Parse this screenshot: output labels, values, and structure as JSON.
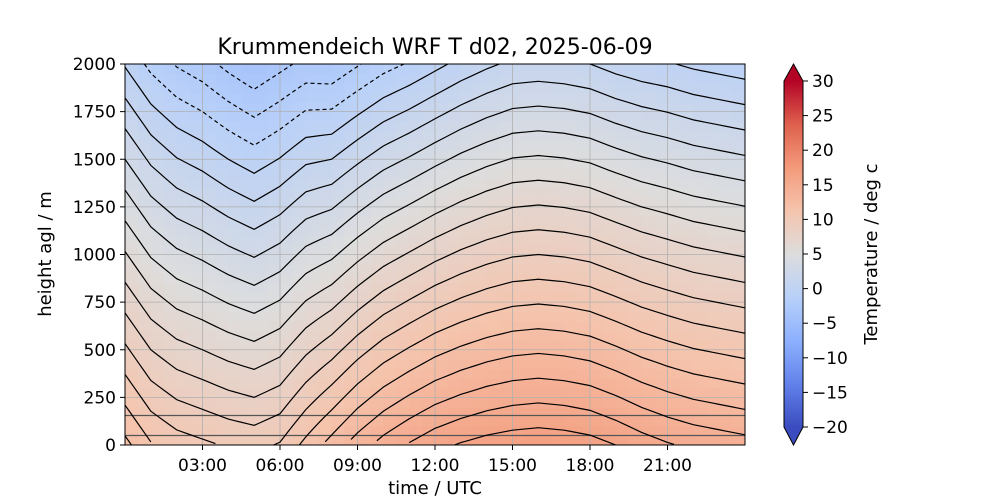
{
  "chart_data": {
    "type": "heatmap",
    "title": "Krummendeich WRF T d02, 2025-06-09",
    "xlabel": "time / UTC",
    "ylabel": "height agl / m",
    "colorbar_label": "Temperature / deg c",
    "colormap": "coolwarm",
    "xlim": [
      0,
      24
    ],
    "ylim": [
      0,
      2000
    ],
    "clim": [
      -20,
      30
    ],
    "colorbar_extend": "both",
    "grid": true,
    "x_ticks": [
      {
        "value": 3,
        "label": "03:00"
      },
      {
        "value": 6,
        "label": "06:00"
      },
      {
        "value": 9,
        "label": "09:00"
      },
      {
        "value": 12,
        "label": "12:00"
      },
      {
        "value": 15,
        "label": "15:00"
      },
      {
        "value": 18,
        "label": "18:00"
      },
      {
        "value": 21,
        "label": "21:00"
      }
    ],
    "y_ticks": [
      {
        "value": 0,
        "label": "0"
      },
      {
        "value": 250,
        "label": "250"
      },
      {
        "value": 500,
        "label": "500"
      },
      {
        "value": 750,
        "label": "750"
      },
      {
        "value": 1000,
        "label": "1000"
      },
      {
        "value": 1250,
        "label": "1250"
      },
      {
        "value": 1500,
        "label": "1500"
      },
      {
        "value": 1750,
        "label": "1750"
      },
      {
        "value": 2000,
        "label": "2000"
      }
    ],
    "colorbar_ticks": [
      {
        "value": 30,
        "label": "30"
      },
      {
        "value": 25,
        "label": "25"
      },
      {
        "value": 20,
        "label": "20"
      },
      {
        "value": 15,
        "label": "15"
      },
      {
        "value": 10,
        "label": "10"
      },
      {
        "value": 5,
        "label": "5"
      },
      {
        "value": 0,
        "label": "0"
      },
      {
        "value": -5,
        "label": "−5"
      },
      {
        "value": -10,
        "label": "−10"
      },
      {
        "value": -15,
        "label": "−15"
      },
      {
        "value": -20,
        "label": "−20"
      }
    ],
    "horizontal_lines_m": [
      50,
      155
    ],
    "times_h": [
      0,
      1,
      2,
      3,
      4,
      5,
      6,
      7,
      8,
      9,
      10,
      11,
      12,
      13,
      14,
      15,
      16,
      17,
      18,
      19,
      20,
      21,
      22,
      23,
      24
    ],
    "surface_temperature": [
      12.3,
      11.1,
      10.5,
      10.2,
      9.9,
      9.7,
      10.1,
      11.3,
      12.4,
      13.5,
      14.4,
      15.1,
      15.7,
      16.1,
      16.4,
      16.6,
      16.7,
      16.6,
      16.4,
      16.0,
      15.5,
      15.1,
      14.8,
      14.6,
      14.4
    ],
    "lapse_rate_per_km": [
      6.2,
      6.2,
      6.3,
      6.4,
      6.6,
      6.8,
      6.7,
      7.0,
      7.6,
      7.8,
      7.9,
      8.0,
      8.0,
      7.9,
      7.8,
      7.7,
      7.7,
      7.7,
      7.7,
      7.7,
      7.6,
      7.5,
      7.5,
      7.5,
      7.5
    ],
    "contour_interval": 1,
    "negative_contours": "dashed"
  }
}
